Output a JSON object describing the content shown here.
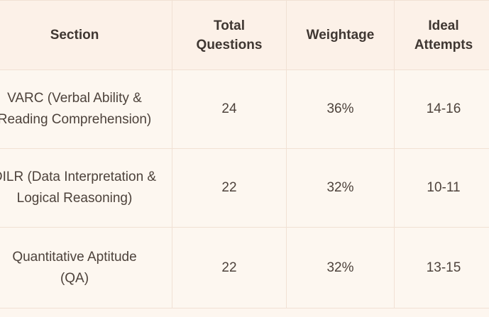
{
  "table": {
    "headers": [
      "Section",
      "Total Questions",
      "Weightage",
      "Ideal Attempts"
    ],
    "rows": [
      {
        "section": "VARC (Verbal Ability & Reading Comprehension)",
        "total_questions": "24",
        "weightage": "36%",
        "ideal_attempts": "14-16"
      },
      {
        "section": "DILR (Data Interpretation & Logical Reasoning)",
        "total_questions": "22",
        "weightage": "32%",
        "ideal_attempts": "10-11"
      },
      {
        "section": "Quantitative Aptitude (QA)",
        "total_questions": "22",
        "weightage": "32%",
        "ideal_attempts": "13-15"
      }
    ]
  }
}
